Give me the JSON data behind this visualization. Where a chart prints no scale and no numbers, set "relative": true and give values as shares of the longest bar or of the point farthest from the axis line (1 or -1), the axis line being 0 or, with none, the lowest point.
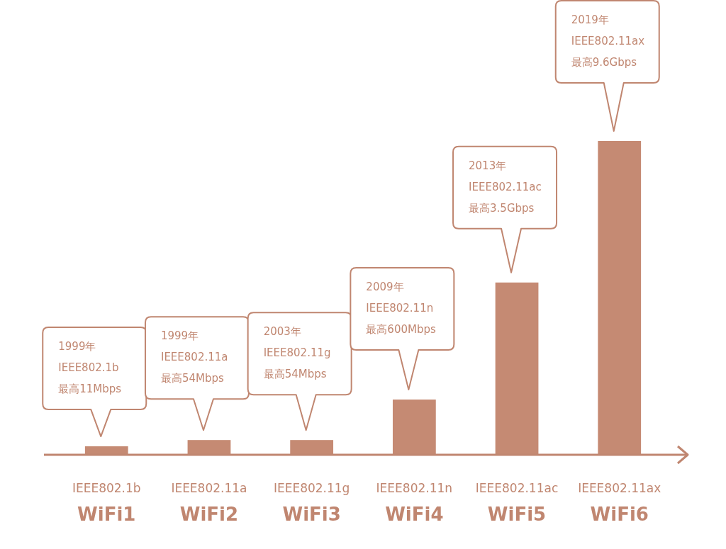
{
  "chart_data": {
    "type": "bar",
    "relative": true,
    "color": "#c58a73",
    "categories": [
      "IEEE802.1b\nWiFi1",
      "IEEE802.11a\nWiFi2",
      "IEEE802.11g\nWiFi3",
      "IEEE802.11n\nWiFi4",
      "IEEE802.11ac\nWiFi5",
      "IEEE802.11ax\nWiFi6"
    ],
    "values": [
      0.027,
      0.047,
      0.047,
      0.176,
      0.549,
      1
    ],
    "annotations": [
      "1999年\nIEEE802.1b\n最高11Mbps",
      "1999年\nIEEE802.11a\n最高54Mbps",
      "2003年\nIEEE802.11g\n最高54Mbps",
      "2009年\nIEEE802.11n\n最高600Mbps",
      "2013年\nIEEE802.11ac\n最高3.5Gbps",
      "2019年\nIEEE802.11ax\n最高9.6Gbps"
    ]
  }
}
